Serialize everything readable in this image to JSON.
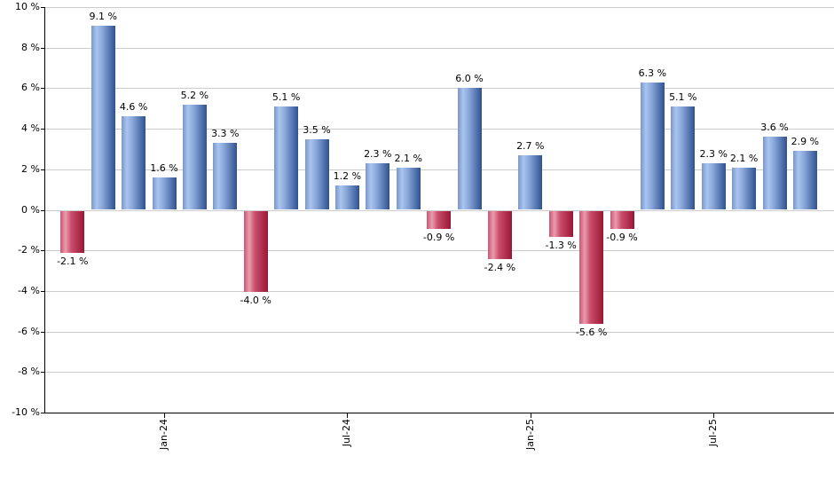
{
  "chart_data": {
    "type": "bar",
    "title": "",
    "xlabel": "",
    "ylabel": "",
    "ylim": [
      -10,
      10
    ],
    "y_tick_step": 2,
    "grid": true,
    "y_tick_labels": [
      "10 %",
      "8 %",
      "6 %",
      "4 %",
      "2 %",
      "0 %",
      "-2 %",
      "-4 %",
      "-6 %",
      "-8 %",
      "-10 %"
    ],
    "values": [
      -2.1,
      9.1,
      4.6,
      1.6,
      5.2,
      3.3,
      -4.0,
      5.1,
      3.5,
      1.2,
      2.3,
      2.1,
      -0.9,
      6.0,
      -2.4,
      2.7,
      -1.3,
      -5.6,
      -0.9,
      6.3,
      5.1,
      2.3,
      2.1,
      3.6,
      2.9
    ],
    "bar_labels": [
      "-2.1 %",
      "9.1 %",
      "4.6 %",
      "1.6 %",
      "5.2 %",
      "3.3 %",
      "-4.0 %",
      "5.1 %",
      "3.5 %",
      "1.2 %",
      "2.3 %",
      "2.1 %",
      "-0.9 %",
      "6.0 %",
      "-2.4 %",
      "2.7 %",
      "-1.3 %",
      "-5.6 %",
      "-0.9 %",
      "6.3 %",
      "5.1 %",
      "2.3 %",
      "2.1 %",
      "3.6 %",
      "2.9 %"
    ],
    "x_tick_labels": [
      {
        "label": "Jan-24",
        "bar_index": 3
      },
      {
        "label": "Jul-24",
        "bar_index": 9
      },
      {
        "label": "Jan-25",
        "bar_index": 15
      },
      {
        "label": "Jul-25",
        "bar_index": 21
      }
    ],
    "colors": {
      "positive_bar_gradient": [
        "#7b97c9",
        "#a9c4ef",
        "#8aa8d9",
        "#2e5191"
      ],
      "negative_bar_gradient": [
        "#c85672",
        "#eb9cae",
        "#c94f6d",
        "#9b1634"
      ],
      "gridline": "#cccccc",
      "axis": "#000000",
      "label_text": "#000000",
      "background": "#ffffff"
    }
  }
}
